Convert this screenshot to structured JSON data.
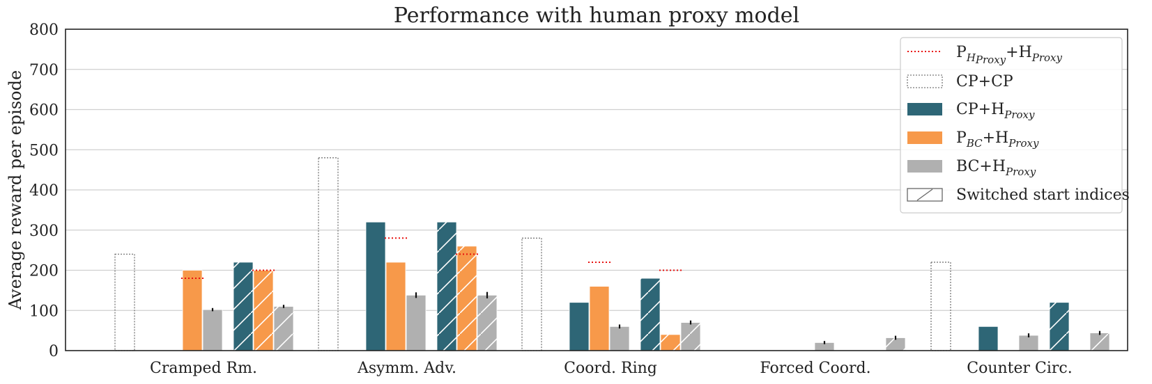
{
  "chart_data": {
    "type": "bar",
    "title": "Performance with human proxy model",
    "xlabel": "",
    "ylabel": "Average reward per episode",
    "ylim": [
      0,
      800
    ],
    "yticks": [
      0,
      100,
      200,
      300,
      400,
      500,
      600,
      700,
      800
    ],
    "grid": "horizontal",
    "legend_position": "top-right",
    "categories": [
      "Cramped Rm.",
      "Asymm. Adv.",
      "Coord. Ring",
      "Forced Coord.",
      "Counter Circ."
    ],
    "colors": {
      "cp_hproxy": "#2e6676",
      "pbc_hproxy": "#f7994a",
      "bc_hproxy": "#b0b0b0",
      "cp_cp_outline": "#777777",
      "reference_line": "#e8110f",
      "error_bar": "#111111"
    },
    "legend": [
      {
        "key": "ref",
        "base": "P",
        "sub": "H",
        "subsub": "Proxy",
        "rest": "+H",
        "rest_sub": "Proxy"
      },
      {
        "key": "cpcp",
        "base": "CP+CP"
      },
      {
        "key": "cph",
        "base": "CP+H",
        "rest_sub": "Proxy"
      },
      {
        "key": "pbch",
        "base": "P",
        "sub": "BC",
        "rest": "+H",
        "rest_sub": "Proxy"
      },
      {
        "key": "bch",
        "base": "BC+H",
        "rest_sub": "Proxy"
      },
      {
        "key": "switched",
        "base": "Switched start indices"
      }
    ],
    "series": {
      "cp_cp": [
        240,
        480,
        280,
        0,
        220
      ],
      "cp_hproxy": [
        0,
        320,
        120,
        0,
        60
      ],
      "pbc_hproxy": [
        200,
        220,
        160,
        0,
        0
      ],
      "bc_hproxy": [
        102,
        138,
        60,
        20,
        38
      ],
      "cp_hproxy_switched": [
        220,
        320,
        180,
        0,
        120
      ],
      "pbc_hproxy_switched": [
        200,
        260,
        40,
        0,
        0
      ],
      "bc_hproxy_switched": [
        110,
        138,
        70,
        32,
        44
      ]
    },
    "error_bars": {
      "bc_hproxy": [
        4,
        7,
        5,
        4,
        5
      ],
      "bc_hproxy_switched": [
        4,
        8,
        5,
        5,
        5
      ]
    },
    "reference_lines": {
      "normal": [
        180,
        280,
        220,
        null,
        null
      ],
      "switched": [
        200,
        240,
        200,
        null,
        null
      ]
    }
  }
}
